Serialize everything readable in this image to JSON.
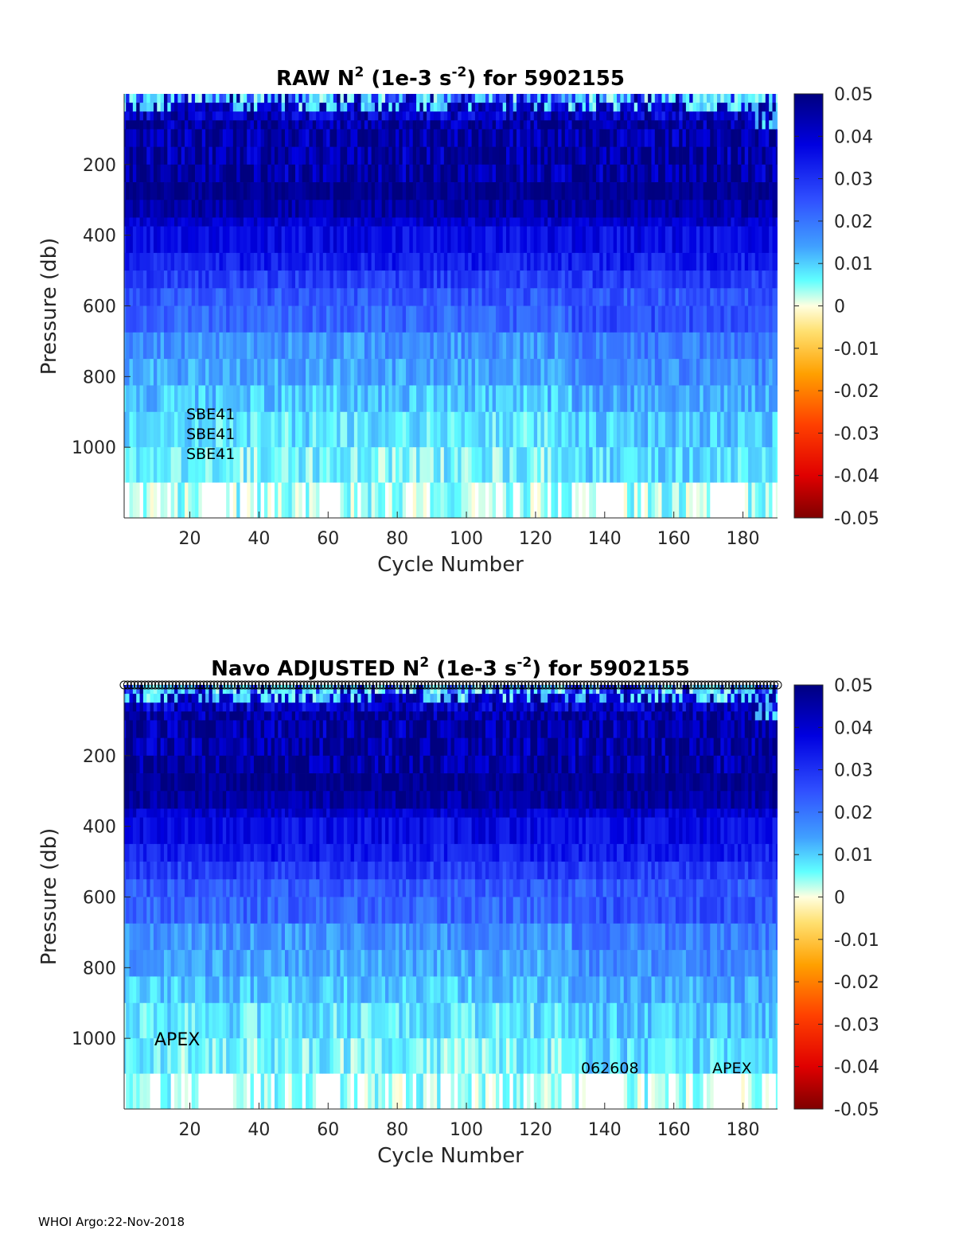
{
  "chart_data": [
    {
      "type": "heatmap",
      "title": "RAW N",
      "title_sup": "2",
      "title_mid": " (1e-3 s",
      "title_sup2": "-2",
      "title_end": ") for 5902155",
      "xlabel": "Cycle Number",
      "ylabel": "Pressure (db)",
      "xlim": [
        1,
        190
      ],
      "ylim": [
        1200,
        0
      ],
      "xticks": [
        20,
        40,
        60,
        80,
        100,
        120,
        140,
        160,
        180
      ],
      "yticks": [
        200,
        400,
        600,
        800,
        1000
      ],
      "colorbar_ticks": [
        "0.05",
        "0.04",
        "0.03",
        "0.02",
        "0.01",
        "0",
        "-0.01",
        "-0.02",
        "-0.03",
        "-0.04",
        "-0.05"
      ],
      "clim": [
        -0.05,
        0.05
      ],
      "depth_levels": [
        0,
        25,
        50,
        75,
        100,
        150,
        200,
        250,
        300,
        350,
        375,
        450,
        500,
        550,
        600,
        675,
        750,
        825,
        900,
        1000,
        1100,
        1200
      ],
      "layer_means": [
        0.003,
        0.012,
        0.045,
        0.05,
        0.05,
        0.05,
        0.05,
        0.048,
        0.045,
        0.04,
        0.036,
        0.033,
        0.028,
        0.024,
        0.022,
        0.016,
        0.014,
        0.011,
        0.008,
        0.006,
        0.004
      ],
      "annotations": [
        "SBE41",
        "SBE41",
        "SBE41"
      ]
    },
    {
      "type": "heatmap",
      "title": "Navo  ADJUSTED N",
      "title_sup": "2",
      "title_mid": " (1e-3 s",
      "title_sup2": "-2",
      "title_end": ") for 5902155",
      "xlabel": "Cycle Number",
      "ylabel": "Pressure (db)",
      "xlim": [
        1,
        190
      ],
      "ylim": [
        1200,
        0
      ],
      "xticks": [
        20,
        40,
        60,
        80,
        100,
        120,
        140,
        160,
        180
      ],
      "yticks": [
        200,
        400,
        600,
        800,
        1000
      ],
      "colorbar_ticks": [
        "0.05",
        "0.04",
        "0.03",
        "0.02",
        "0.01",
        "0",
        "-0.01",
        "-0.02",
        "-0.03",
        "-0.04",
        "-0.05"
      ],
      "clim": [
        -0.05,
        0.05
      ],
      "depth_levels": [
        0,
        25,
        50,
        75,
        100,
        150,
        200,
        250,
        300,
        350,
        375,
        450,
        500,
        550,
        600,
        675,
        750,
        825,
        900,
        1000,
        1100,
        1200
      ],
      "layer_means": [
        0.003,
        0.012,
        0.045,
        0.05,
        0.05,
        0.05,
        0.05,
        0.048,
        0.045,
        0.04,
        0.036,
        0.033,
        0.028,
        0.024,
        0.022,
        0.016,
        0.014,
        0.011,
        0.008,
        0.006,
        0.004
      ],
      "annotations": [
        "APEX",
        "062608",
        "APEX"
      ],
      "top_markers": "circles at each cycle along top edge"
    }
  ],
  "footer": "WHOI Argo:22-Nov-2018",
  "colors": {
    "max": "#00007f",
    "zero": "#ffffd0",
    "min": "#7f0000"
  }
}
